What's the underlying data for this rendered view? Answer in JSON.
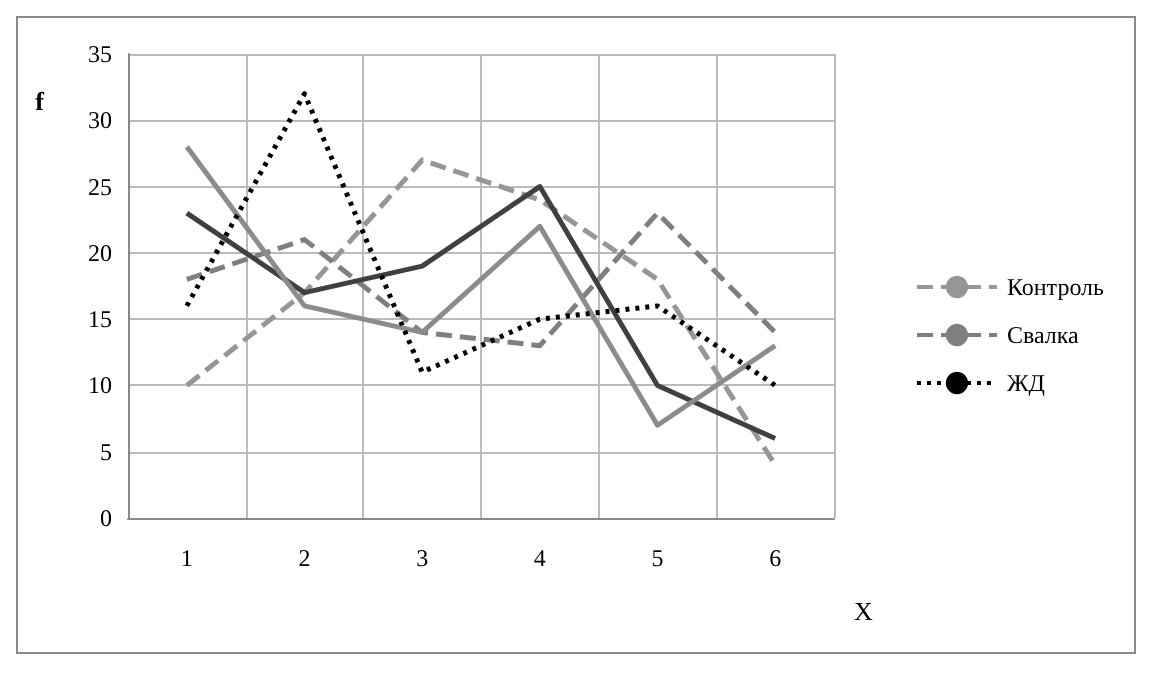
{
  "chart_data": {
    "type": "line",
    "xlabel": "X",
    "ylabel": "f",
    "categories": [
      "1",
      "2",
      "3",
      "4",
      "5",
      "6"
    ],
    "series": [
      {
        "name": "Контроль",
        "color": "#969696",
        "line_style": "dashed",
        "values": [
          10,
          17,
          27,
          24,
          18,
          4
        ]
      },
      {
        "name": "Свалка",
        "color": "#7f7f7f",
        "line_style": "dashed",
        "values": [
          18,
          21,
          14,
          13,
          23,
          14
        ]
      },
      {
        "color": "#404040",
        "line_style": "solid",
        "values": [
          23,
          17,
          19,
          25,
          10,
          6
        ]
      },
      {
        "color": "#8c8c8c",
        "line_style": "solid",
        "values": [
          28,
          16,
          14,
          22,
          7,
          13
        ]
      },
      {
        "name": "ЖД",
        "color": "#000000",
        "line_style": "dotted",
        "values": [
          16,
          32,
          11,
          15,
          16,
          10
        ]
      }
    ],
    "ylim": [
      0,
      35
    ],
    "yticks": [
      0,
      5,
      10,
      15,
      20,
      25,
      30,
      35
    ],
    "grid": true,
    "legend": "right",
    "marker": "none"
  }
}
